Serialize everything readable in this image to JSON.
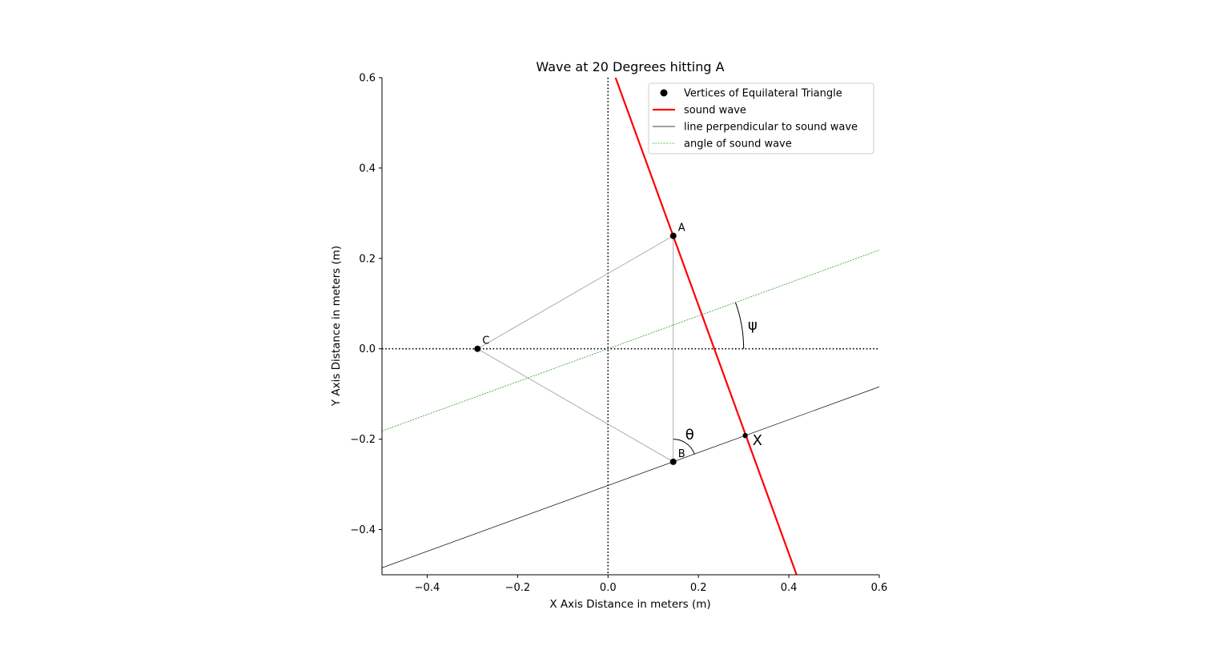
{
  "chart_data": {
    "type": "line",
    "title": "Wave at 20 Degrees hitting A",
    "xlabel": "X Axis Distance in meters (m)",
    "ylabel": "Y Axis Distance in meters (m)",
    "xlim": [
      -0.5,
      0.6
    ],
    "ylim": [
      -0.5,
      0.6
    ],
    "xticks": [
      -0.4,
      -0.2,
      0.0,
      0.2,
      0.4,
      0.6
    ],
    "xtick_labels": [
      "−0.4",
      "−0.2",
      "0.0",
      "0.2",
      "0.4",
      "0.6"
    ],
    "yticks": [
      -0.4,
      -0.2,
      0.0,
      0.2,
      0.4,
      0.6
    ],
    "ytick_labels": [
      "−0.4",
      "−0.2",
      "0.0",
      "0.2",
      "0.4",
      "0.6"
    ],
    "grid": false,
    "legend_position": "upper-right",
    "vertices": [
      {
        "label": "A",
        "x": 0.1443,
        "y": 0.25
      },
      {
        "label": "B",
        "x": 0.1443,
        "y": -0.25
      },
      {
        "label": "C",
        "x": -0.2887,
        "y": 0.0
      }
    ],
    "intersection_point": {
      "label": "X",
      "x": 0.3035,
      "y": -0.192
    },
    "series": [
      {
        "name": "Vertices of Equilateral Triangle",
        "style": "marker",
        "color": "#000000"
      },
      {
        "name": "sound wave",
        "style": "line",
        "color": "#ff0000",
        "x": [
          0.0167,
          0.4171
        ],
        "y": [
          0.6,
          -0.5
        ]
      },
      {
        "name": "line perpendicular to sound wave",
        "style": "line",
        "color": "#000000",
        "x": [
          -0.5,
          0.6
        ],
        "y": [
          -0.4845,
          -0.0841
        ]
      },
      {
        "name": "angle of sound wave",
        "style": "dashed",
        "color": "#2ca02c",
        "x": [
          -0.5,
          0.6
        ],
        "y": [
          -0.182,
          0.2184
        ]
      }
    ],
    "triangle_edges": [
      [
        "A",
        "B"
      ],
      [
        "B",
        "C"
      ],
      [
        "C",
        "A"
      ]
    ],
    "reference_lines": {
      "x0": 0.0,
      "y0": 0.0,
      "style": "dotted"
    },
    "angle_psi": {
      "symbol": "ψ",
      "center": [
        0.0,
        0.0
      ],
      "radius": 0.3,
      "from_deg": 0,
      "to_deg": 20
    },
    "angle_theta": {
      "symbol": "θ",
      "center_vertex": "B",
      "radius": 0.05,
      "from_deg": 20,
      "to_deg": 90
    }
  }
}
